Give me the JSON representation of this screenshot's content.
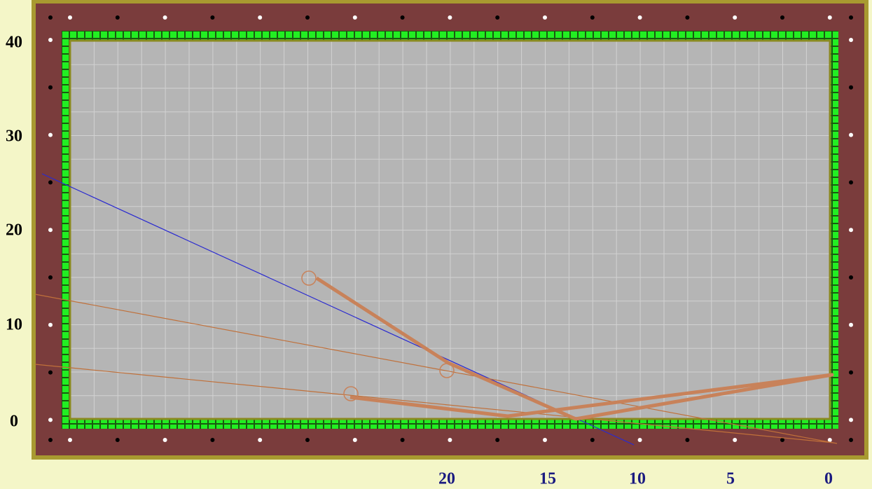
{
  "y_axis_labels": [
    "40",
    "30",
    "20",
    "10",
    "0"
  ],
  "x_axis_labels": [
    "20",
    "15",
    "10",
    "5",
    "0"
  ]
}
